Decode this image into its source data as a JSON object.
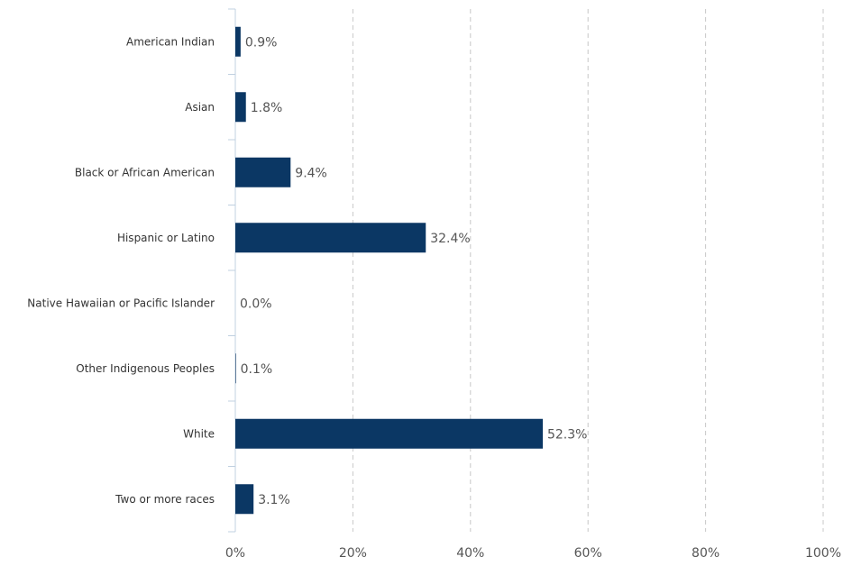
{
  "chart_data": {
    "type": "bar",
    "orientation": "horizontal",
    "categories": [
      "American Indian",
      "Asian",
      "Black or African American",
      "Hispanic or Latino",
      "Native Hawaiian or Pacific Islander",
      "Other Indigenous Peoples",
      "White",
      "Two or more races"
    ],
    "values": [
      0.9,
      1.8,
      9.4,
      32.4,
      0.0,
      0.1,
      52.3,
      3.1
    ],
    "value_labels": [
      "0.9%",
      "1.8%",
      "9.4%",
      "32.4%",
      "0.0%",
      "0.1%",
      "52.3%",
      "3.1%"
    ],
    "xlim": [
      0,
      100
    ],
    "x_ticks": [
      0,
      20,
      40,
      60,
      80,
      100
    ],
    "x_tick_labels": [
      "0%",
      "20%",
      "40%",
      "60%",
      "80%",
      "100%"
    ],
    "title": "",
    "xlabel": "",
    "ylabel": "",
    "grid": "vertical dashed",
    "bar_color": "#0b3764",
    "grid_color": "#c8c8c8",
    "axis_color": "#c0d0e0"
  }
}
